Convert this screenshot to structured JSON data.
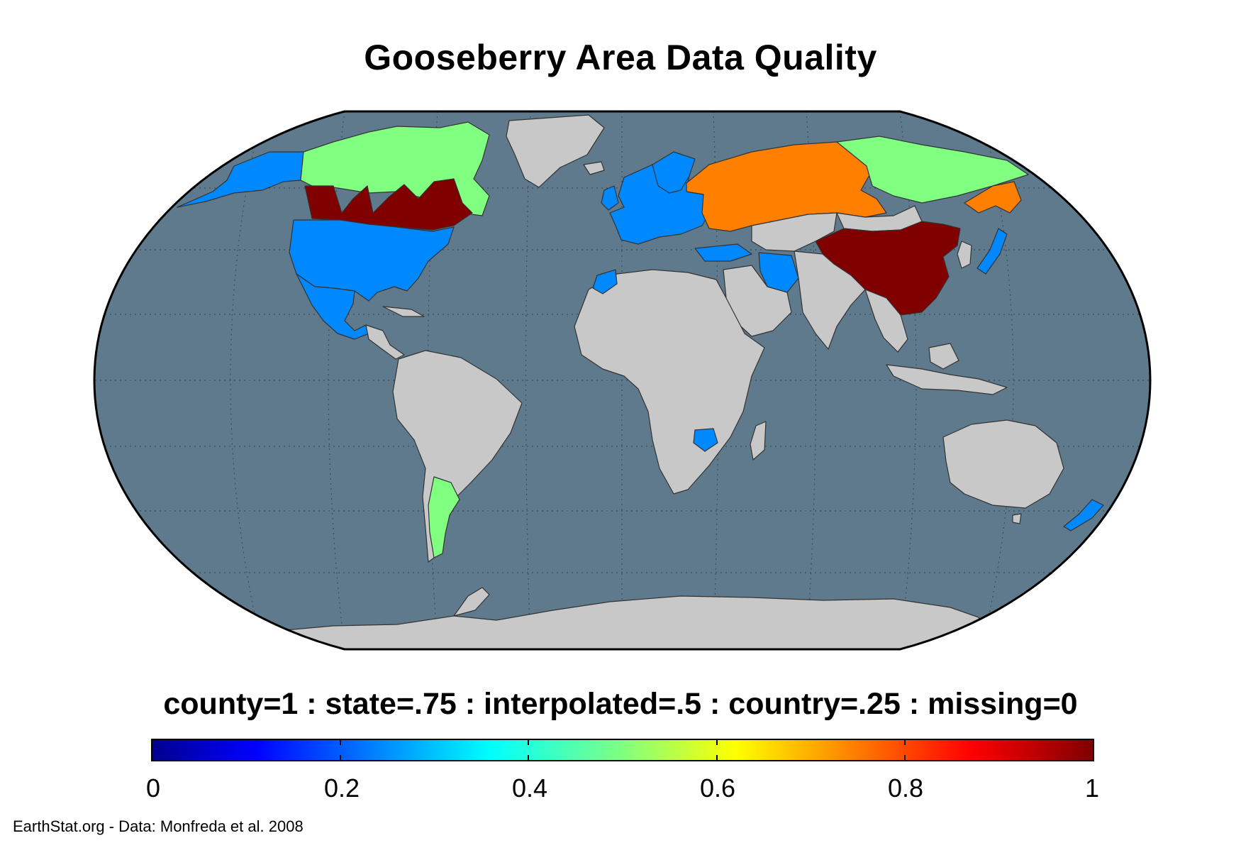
{
  "title": "Gooseberry Area Data Quality",
  "legend": {
    "caption": "county=1 : state=.75 : interpolated=.5 : country=.25 : missing=0",
    "colormap": "jet",
    "range": [
      0,
      1
    ],
    "ticks": [
      "0",
      "0.2",
      "0.4",
      "0.6",
      "0.8",
      "1"
    ]
  },
  "credit": "EarthStat.org - Data: Monfreda et al. 2008",
  "colors": {
    "ocean": "#5f7a8c",
    "no_data_land": "#c8c8c8",
    "county": "#800000",
    "state": "#ff8000",
    "interpolated": "#80ff80",
    "country": "#0088ff"
  },
  "regions": [
    {
      "name": "China",
      "category": "county",
      "value": 1
    },
    {
      "name": "Canada (southern provinces)",
      "category": "county",
      "value": 1
    },
    {
      "name": "Russia (western & southern)",
      "category": "state",
      "value": 0.75
    },
    {
      "name": "Russia (eastern)",
      "category": "interpolated",
      "value": 0.5
    },
    {
      "name": "Canada (northern)",
      "category": "interpolated",
      "value": 0.5
    },
    {
      "name": "Argentina",
      "category": "interpolated",
      "value": 0.5
    },
    {
      "name": "United States",
      "category": "country",
      "value": 0.25
    },
    {
      "name": "Mexico",
      "category": "country",
      "value": 0.25
    },
    {
      "name": "Europe",
      "category": "country",
      "value": 0.25
    },
    {
      "name": "Japan",
      "category": "country",
      "value": 0.25
    },
    {
      "name": "New Zealand",
      "category": "country",
      "value": 0.25
    }
  ]
}
